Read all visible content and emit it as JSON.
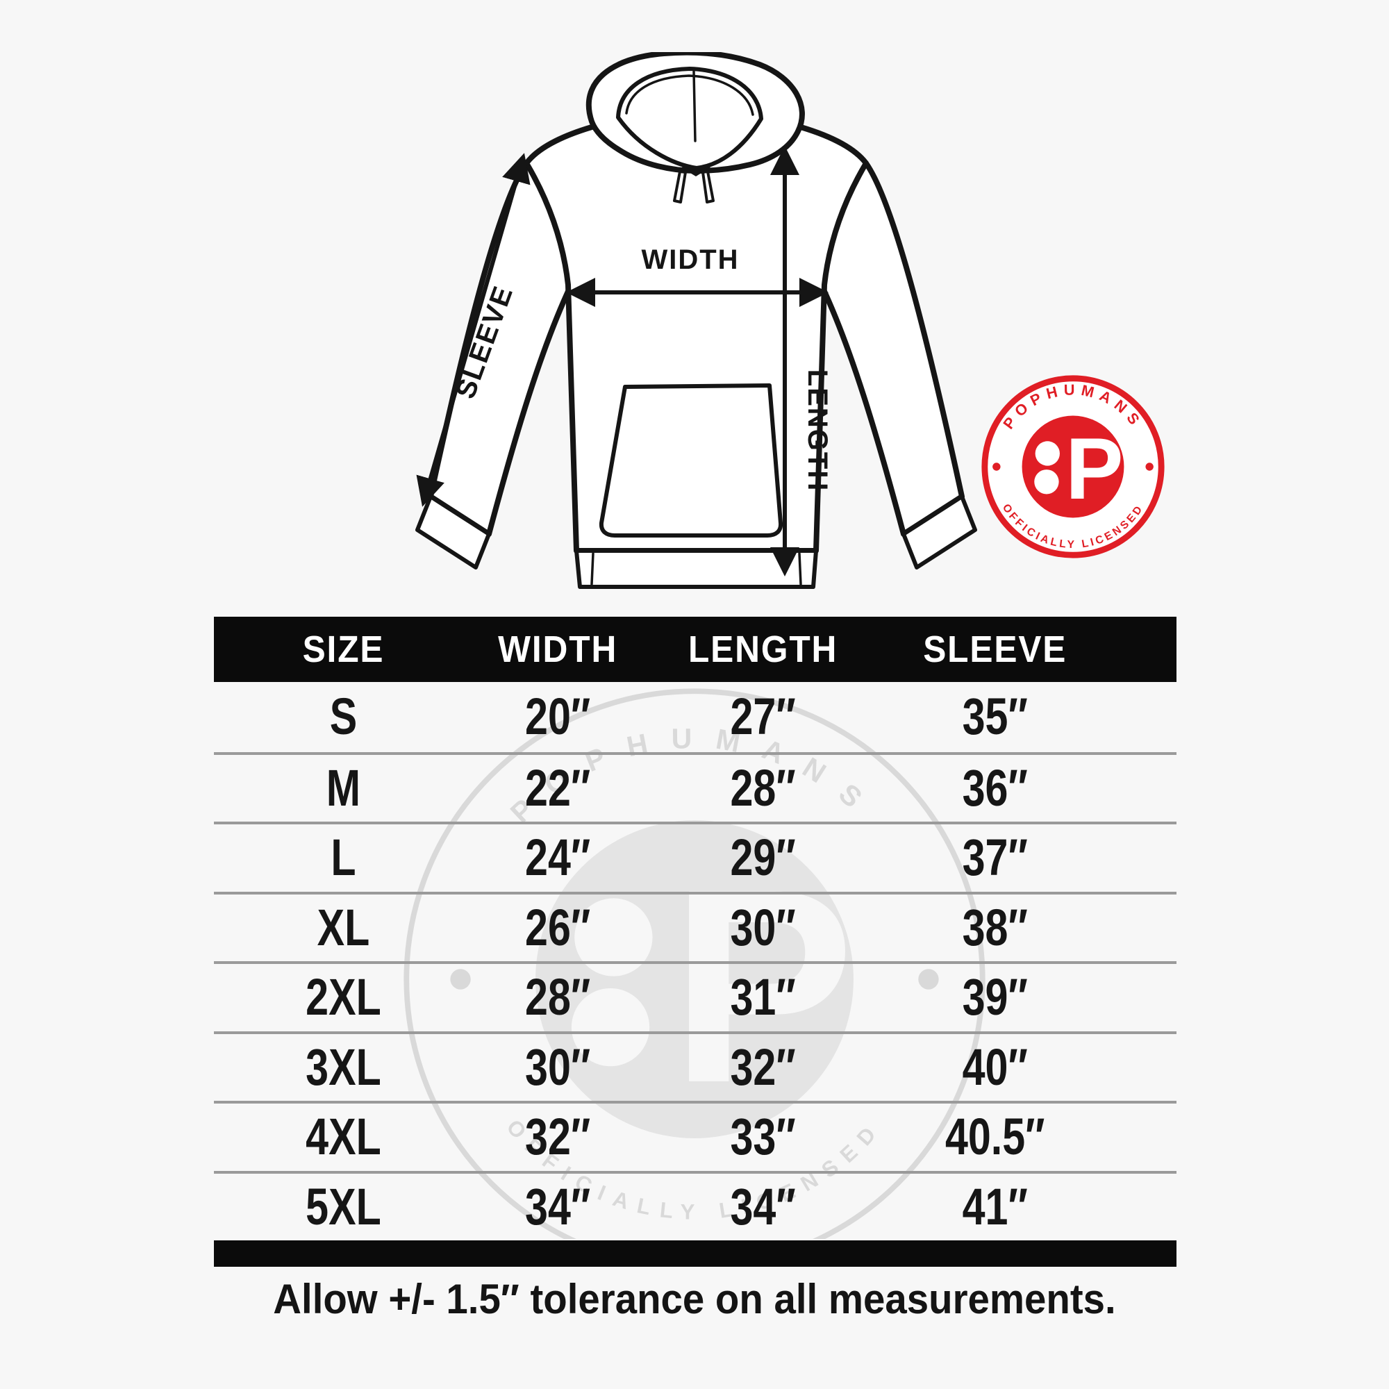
{
  "page": {
    "background": "#f7f7f7"
  },
  "diagram": {
    "width_label": "WIDTH",
    "length_label": "LENGTH",
    "sleeve_label": "SLEEVE"
  },
  "badge": {
    "top_text": "POPHUMANS",
    "bottom_text": "OFFICIALLY LICENSED",
    "monogram": "P",
    "accent_color": "#e01e25"
  },
  "watermark": {
    "color": "#d9d9d9"
  },
  "chart_data": {
    "type": "table",
    "columns": [
      "SIZE",
      "WIDTH",
      "LENGTH",
      "SLEEVE"
    ],
    "rows": [
      [
        "S",
        "20″",
        "27″",
        "35″"
      ],
      [
        "M",
        "22″",
        "28″",
        "36″"
      ],
      [
        "L",
        "24″",
        "29″",
        "37″"
      ],
      [
        "XL",
        "26″",
        "30″",
        "38″"
      ],
      [
        "2XL",
        "28″",
        "31″",
        "39″"
      ],
      [
        "3XL",
        "30″",
        "32″",
        "40″"
      ],
      [
        "4XL",
        "32″",
        "33″",
        "40.5″"
      ],
      [
        "5XL",
        "34″",
        "34″",
        "41″"
      ]
    ],
    "header_bg": "#0b0b0b",
    "divider_color": "#9a9a9a",
    "annotation": "Allow +/- 1.5″ tolerance on all measurements."
  }
}
